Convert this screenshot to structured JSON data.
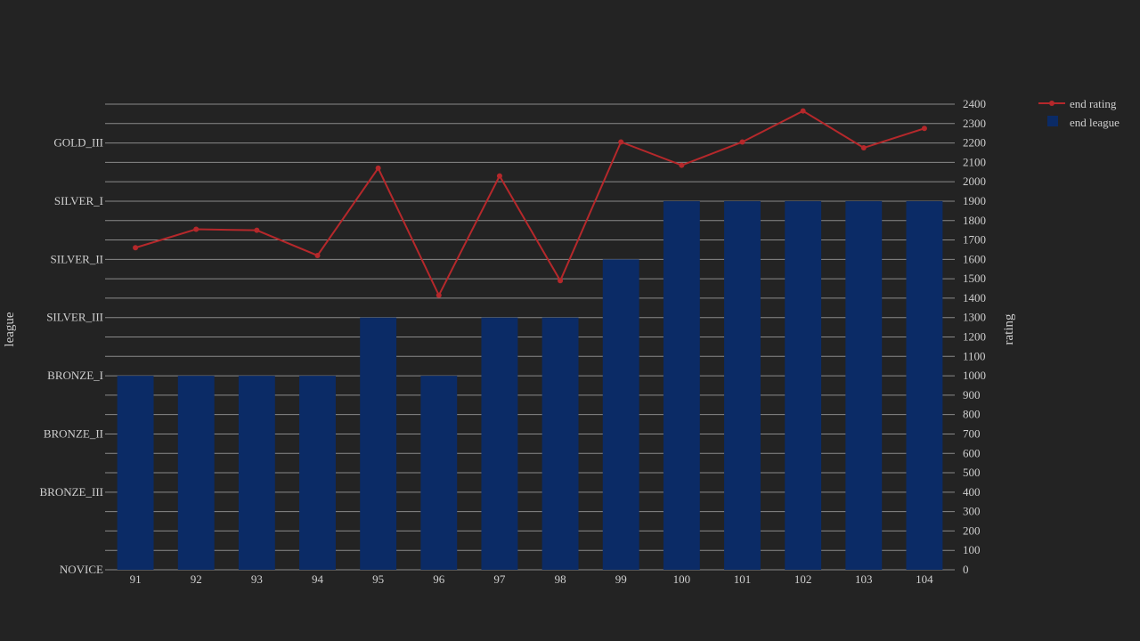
{
  "chart_data": {
    "type": "bar",
    "categories": [
      "91",
      "92",
      "93",
      "94",
      "95",
      "96",
      "97",
      "98",
      "99",
      "100",
      "101",
      "102",
      "103",
      "104"
    ],
    "series": [
      {
        "name": "end league",
        "type": "bar",
        "axis": "left",
        "values": [
          "BRONZE_I",
          "BRONZE_I",
          "BRONZE_I",
          "BRONZE_I",
          "SILVER_III",
          "BRONZE_I",
          "SILVER_III",
          "SILVER_III",
          "SILVER_II",
          "SILVER_I",
          "SILVER_I",
          "SILVER_I",
          "SILVER_I",
          "SILVER_I"
        ],
        "color": "#0b2b66"
      },
      {
        "name": "end rating",
        "type": "line",
        "axis": "right",
        "values": [
          1660,
          1755,
          1750,
          1620,
          2070,
          1415,
          2030,
          1490,
          2205,
          2085,
          2205,
          2365,
          2175,
          2275
        ],
        "color": "#b5282b"
      }
    ],
    "left_axis": {
      "title": "league",
      "categories": [
        "NOVICE",
        "BRONZE_III",
        "BRONZE_II",
        "BRONZE_I",
        "SILVER_III",
        "SILVER_II",
        "SILVER_I",
        "GOLD_III"
      ],
      "values_in_rating": [
        0,
        400,
        700,
        1000,
        1300,
        1600,
        1900,
        2200
      ]
    },
    "right_axis": {
      "title": "rating",
      "ylim": [
        0,
        2400
      ],
      "ticks": [
        0,
        100,
        200,
        300,
        400,
        500,
        600,
        700,
        800,
        900,
        1000,
        1100,
        1200,
        1300,
        1400,
        1500,
        1600,
        1700,
        1800,
        1900,
        2000,
        2100,
        2200,
        2300,
        2400
      ]
    },
    "legend": {
      "placement": "top-right",
      "entries": [
        "end rating",
        "end league"
      ]
    },
    "grid": true
  }
}
